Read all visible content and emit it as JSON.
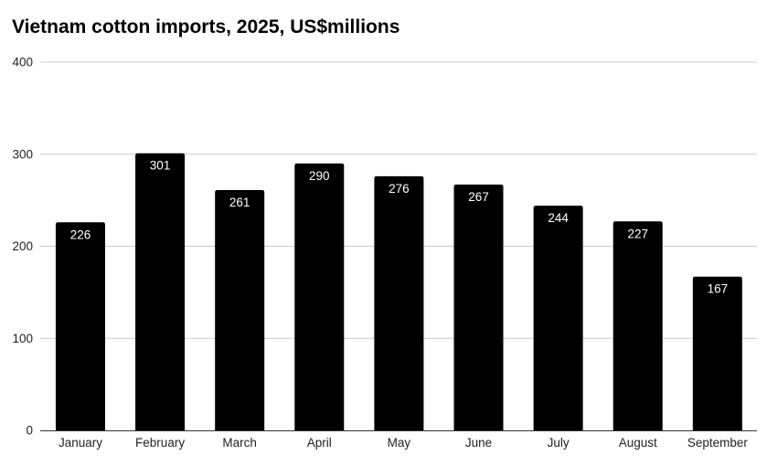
{
  "chart_data": {
    "type": "bar",
    "title": "Vietnam cotton imports, 2025, US$millions",
    "xlabel": "",
    "ylabel": "",
    "categories": [
      "January",
      "February",
      "March",
      "April",
      "May",
      "June",
      "July",
      "August",
      "September"
    ],
    "values": [
      226,
      301,
      261,
      290,
      276,
      267,
      244,
      227,
      167
    ],
    "data_labels": [
      "226",
      "301",
      "261",
      "290",
      "276",
      "267",
      "244",
      "227",
      "167"
    ],
    "ylim": [
      0,
      400
    ],
    "yticks": [
      0,
      100,
      200,
      300,
      400
    ],
    "ytick_labels": [
      "0",
      "100",
      "200",
      "300",
      "400"
    ],
    "grid": true,
    "legend": "none",
    "colors": {
      "bar": "#000000",
      "grid": "#cccccc",
      "axis": "#333333",
      "data_label": "#ffffff"
    }
  }
}
